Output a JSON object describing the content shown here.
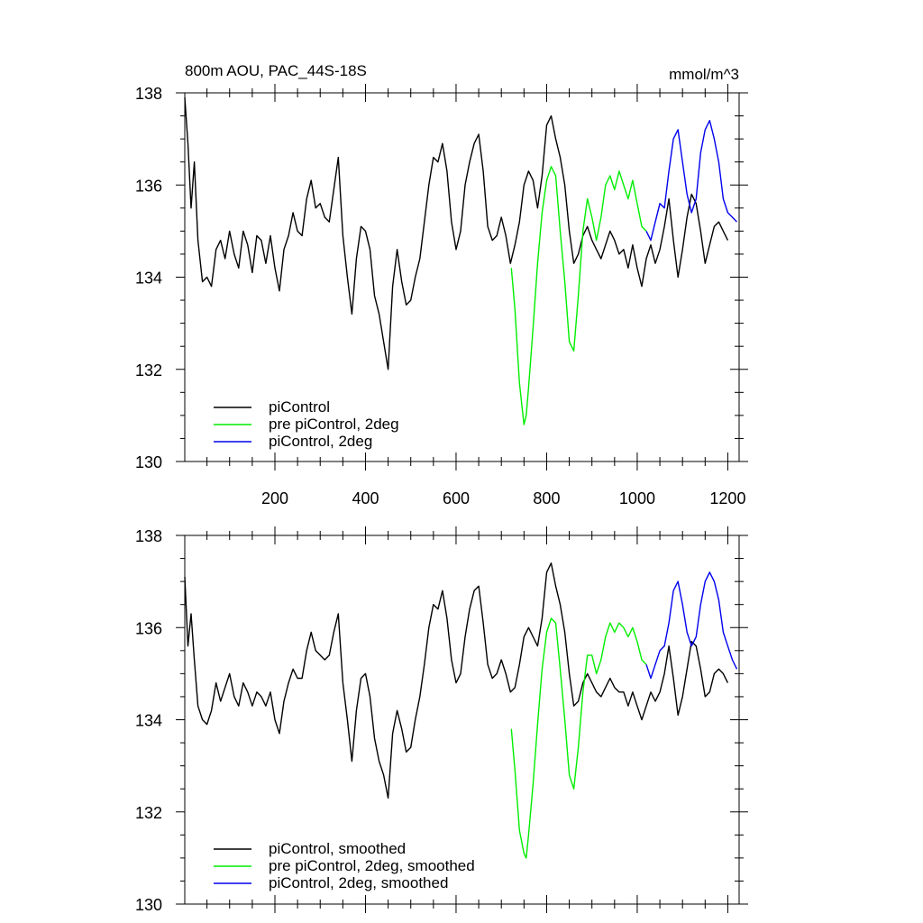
{
  "chart_data": [
    {
      "type": "line",
      "title": "800m AOU, PAC_44S-18S",
      "units": "mmol/m^3",
      "xlim": [
        1,
        1225
      ],
      "ylim": [
        130,
        138
      ],
      "xticks": [
        200,
        400,
        600,
        800,
        1000,
        1200
      ],
      "xtick_labels": [
        "200",
        "400",
        "600",
        "800",
        "1000",
        "1200"
      ],
      "yticks": [
        130,
        132,
        134,
        136,
        138
      ],
      "ytick_labels": [
        "130",
        "132",
        "134",
        "136",
        "138"
      ],
      "grid": false,
      "legend_position": "bottom-left",
      "series": [
        {
          "name": "piControl",
          "color": "#000000",
          "x": [
            1,
            8,
            15,
            22,
            30,
            40,
            50,
            60,
            70,
            80,
            90,
            100,
            110,
            120,
            130,
            140,
            150,
            160,
            170,
            180,
            190,
            200,
            210,
            220,
            230,
            240,
            250,
            260,
            270,
            280,
            290,
            300,
            310,
            320,
            330,
            340,
            350,
            360,
            370,
            380,
            390,
            400,
            410,
            420,
            430,
            440,
            450,
            460,
            470,
            480,
            490,
            500,
            510,
            520,
            530,
            540,
            550,
            560,
            570,
            580,
            590,
            600,
            610,
            620,
            630,
            640,
            650,
            660,
            670,
            680,
            690,
            700,
            710,
            720,
            730,
            740,
            750,
            760,
            770,
            780,
            790,
            800,
            810,
            820,
            830,
            840,
            850,
            860,
            870,
            880,
            890,
            900,
            910,
            920,
            930,
            940,
            950,
            960,
            970,
            980,
            990,
            1000,
            1010,
            1020,
            1030,
            1040,
            1050,
            1060,
            1070,
            1080,
            1090,
            1100,
            1110,
            1120,
            1130,
            1140,
            1150,
            1160,
            1170,
            1180,
            1190,
            1200
          ],
          "y": [
            137.9,
            136.9,
            135.5,
            136.5,
            134.8,
            133.9,
            134.0,
            133.8,
            134.6,
            134.8,
            134.4,
            135.0,
            134.5,
            134.2,
            135.0,
            134.7,
            134.1,
            134.9,
            134.8,
            134.3,
            134.9,
            134.2,
            133.7,
            134.6,
            134.9,
            135.4,
            135.0,
            134.9,
            135.7,
            136.1,
            135.5,
            135.6,
            135.3,
            135.2,
            135.9,
            136.6,
            134.9,
            134.0,
            133.2,
            134.4,
            135.1,
            135.0,
            134.6,
            133.6,
            133.2,
            132.6,
            132.0,
            133.8,
            134.6,
            133.9,
            133.4,
            133.5,
            134.0,
            134.4,
            135.2,
            136.0,
            136.6,
            136.5,
            136.9,
            136.3,
            135.2,
            134.6,
            135.0,
            136.0,
            136.5,
            136.9,
            137.1,
            136.3,
            135.1,
            134.8,
            134.9,
            135.3,
            134.9,
            134.3,
            134.7,
            135.2,
            136.0,
            136.3,
            136.1,
            135.5,
            136.2,
            137.3,
            137.5,
            137.0,
            136.6,
            136.0,
            135.0,
            134.3,
            134.5,
            134.9,
            135.1,
            134.8,
            134.6,
            134.4,
            134.7,
            135.0,
            134.8,
            134.5,
            134.6,
            134.2,
            134.7,
            134.2,
            133.8,
            134.4,
            134.7,
            134.3,
            134.6,
            135.1,
            135.7,
            134.8,
            134.0,
            134.6,
            135.3,
            135.8,
            135.6,
            135.0,
            134.3,
            134.7,
            135.1,
            135.2,
            135.0,
            134.8
          ]
        },
        {
          "name": "pre piControl, 2deg",
          "color": "#00ee00",
          "x": [
            722,
            730,
            740,
            750,
            755,
            760,
            770,
            780,
            790,
            800,
            810,
            820,
            830,
            840,
            850,
            860,
            870,
            880,
            890,
            900,
            910,
            920,
            930,
            940,
            950,
            960,
            970,
            980,
            990,
            1000,
            1010,
            1020
          ],
          "y": [
            134.2,
            133.3,
            131.7,
            130.8,
            131.0,
            131.6,
            132.9,
            134.3,
            135.4,
            136.1,
            136.4,
            136.2,
            135.0,
            133.9,
            132.6,
            132.4,
            133.6,
            135.0,
            135.7,
            135.3,
            134.8,
            135.3,
            136.0,
            136.2,
            135.9,
            136.3,
            136.0,
            135.7,
            136.1,
            135.6,
            135.1,
            135.0
          ]
        },
        {
          "name": "piControl, 2deg",
          "color": "#0000ee",
          "x": [
            1020,
            1030,
            1040,
            1050,
            1060,
            1070,
            1080,
            1090,
            1100,
            1110,
            1120,
            1130,
            1140,
            1150,
            1160,
            1170,
            1180,
            1190,
            1200,
            1210,
            1220
          ],
          "y": [
            135.0,
            134.8,
            135.2,
            135.6,
            135.5,
            136.3,
            137.0,
            137.2,
            136.5,
            135.8,
            135.4,
            135.7,
            136.7,
            137.2,
            137.4,
            137.0,
            136.5,
            135.7,
            135.4,
            135.3,
            135.2
          ]
        }
      ]
    },
    {
      "type": "line",
      "title": "",
      "units": "",
      "xlim": [
        1,
        1225
      ],
      "ylim": [
        130,
        138
      ],
      "xticks": [
        200,
        400,
        600,
        800,
        1000,
        1200
      ],
      "xtick_labels": [],
      "yticks": [
        130,
        132,
        134,
        136,
        138
      ],
      "ytick_labels": [
        "130",
        "132",
        "134",
        "136",
        "138"
      ],
      "grid": false,
      "legend_position": "bottom-left",
      "series": [
        {
          "name": "piControl, smoothed",
          "color": "#000000",
          "x": [
            1,
            8,
            15,
            22,
            30,
            40,
            50,
            60,
            70,
            80,
            90,
            100,
            110,
            120,
            130,
            140,
            150,
            160,
            170,
            180,
            190,
            200,
            210,
            220,
            230,
            240,
            250,
            260,
            270,
            280,
            290,
            300,
            310,
            320,
            330,
            340,
            350,
            360,
            370,
            380,
            390,
            400,
            410,
            420,
            430,
            440,
            450,
            460,
            470,
            480,
            490,
            500,
            510,
            520,
            530,
            540,
            550,
            560,
            570,
            580,
            590,
            600,
            610,
            620,
            630,
            640,
            650,
            660,
            670,
            680,
            690,
            700,
            710,
            720,
            730,
            740,
            750,
            760,
            770,
            780,
            790,
            800,
            810,
            820,
            830,
            840,
            850,
            860,
            870,
            880,
            890,
            900,
            910,
            920,
            930,
            940,
            950,
            960,
            970,
            980,
            990,
            1000,
            1010,
            1020,
            1030,
            1040,
            1050,
            1060,
            1070,
            1080,
            1090,
            1100,
            1110,
            1120,
            1130,
            1140,
            1150,
            1160,
            1170,
            1180,
            1190,
            1200
          ],
          "y": [
            137.1,
            135.6,
            136.3,
            135.3,
            134.3,
            134.0,
            133.9,
            134.2,
            134.8,
            134.4,
            134.7,
            135.0,
            134.5,
            134.3,
            134.8,
            134.6,
            134.3,
            134.6,
            134.5,
            134.3,
            134.6,
            134.0,
            133.7,
            134.4,
            134.8,
            135.1,
            134.9,
            134.9,
            135.5,
            135.9,
            135.5,
            135.4,
            135.3,
            135.4,
            135.9,
            136.3,
            134.8,
            134.0,
            133.1,
            134.2,
            134.9,
            135.0,
            134.5,
            133.6,
            133.1,
            132.8,
            132.3,
            133.7,
            134.2,
            133.8,
            133.3,
            133.4,
            134.0,
            134.5,
            135.2,
            136.0,
            136.5,
            136.4,
            136.8,
            136.2,
            135.3,
            134.8,
            135.0,
            135.8,
            136.4,
            136.8,
            136.9,
            136.1,
            135.2,
            134.9,
            135.0,
            135.3,
            135.0,
            134.6,
            134.7,
            135.2,
            135.8,
            136.0,
            135.8,
            135.6,
            136.2,
            137.2,
            137.4,
            136.9,
            136.5,
            135.9,
            135.0,
            134.3,
            134.4,
            134.8,
            135.0,
            134.8,
            134.6,
            134.5,
            134.7,
            134.9,
            134.7,
            134.6,
            134.6,
            134.3,
            134.6,
            134.3,
            134.0,
            134.3,
            134.6,
            134.4,
            134.6,
            135.0,
            135.6,
            134.9,
            134.1,
            134.5,
            135.1,
            135.7,
            135.6,
            135.1,
            134.5,
            134.6,
            135.0,
            135.1,
            135.0,
            134.8
          ]
        },
        {
          "name": "pre piControl, 2deg, smoothed",
          "color": "#00ee00",
          "x": [
            722,
            730,
            740,
            750,
            755,
            760,
            770,
            780,
            790,
            800,
            810,
            820,
            830,
            840,
            850,
            860,
            870,
            880,
            890,
            900,
            910,
            920,
            930,
            940,
            950,
            960,
            970,
            980,
            990,
            1000,
            1010,
            1020
          ],
          "y": [
            133.8,
            132.9,
            131.6,
            131.1,
            131.0,
            131.5,
            132.6,
            133.9,
            135.1,
            135.9,
            136.2,
            136.1,
            135.1,
            134.0,
            132.8,
            132.5,
            133.4,
            134.6,
            135.4,
            135.4,
            135.0,
            135.3,
            135.8,
            136.1,
            135.9,
            136.1,
            136.0,
            135.8,
            136.0,
            135.7,
            135.3,
            135.2
          ]
        },
        {
          "name": "piControl, 2deg, smoothed",
          "color": "#0000ee",
          "x": [
            1020,
            1030,
            1040,
            1050,
            1060,
            1070,
            1080,
            1090,
            1100,
            1110,
            1120,
            1130,
            1140,
            1150,
            1160,
            1170,
            1180,
            1190,
            1200,
            1210,
            1220
          ],
          "y": [
            135.2,
            134.9,
            135.2,
            135.5,
            135.6,
            136.1,
            136.8,
            137.0,
            136.5,
            135.9,
            135.6,
            135.8,
            136.5,
            137.0,
            137.2,
            137.0,
            136.6,
            135.9,
            135.6,
            135.3,
            135.1
          ]
        }
      ]
    }
  ]
}
